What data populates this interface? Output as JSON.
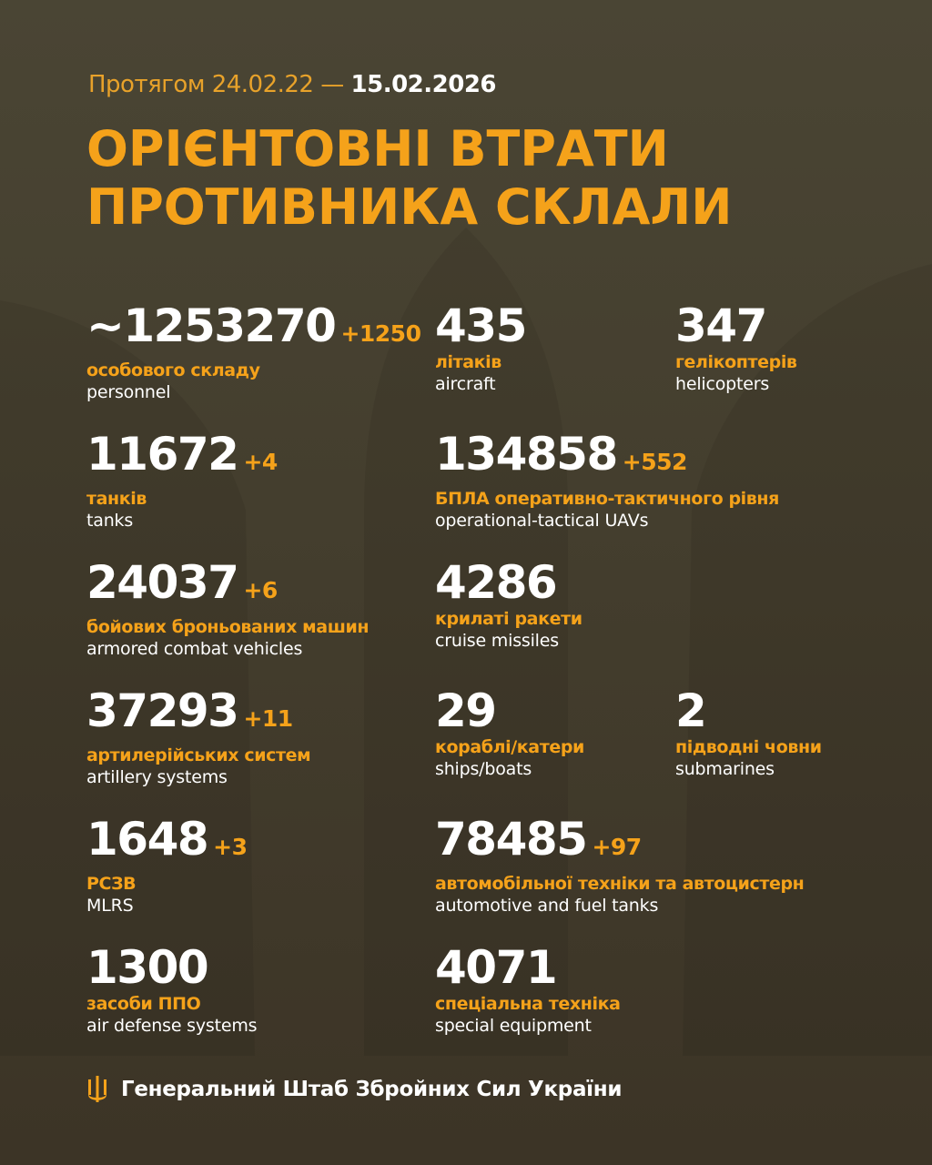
{
  "header": {
    "period_prefix": "Протягом 24.02.22 —",
    "period_end": "15.02.2026",
    "title_line1": "ОРІЄНТОВНІ ВТРАТИ",
    "title_line2": "ПРОТИВНИКА СКЛАЛИ"
  },
  "colors": {
    "accent": "#f5a21a",
    "background": "#463f2f",
    "text": "#ffffff"
  },
  "stats": [
    {
      "value": "~1253270",
      "delta": "+1250",
      "ua": "особового складу",
      "en": "personnel"
    },
    {
      "value": "435",
      "delta": "",
      "ua": "літаків",
      "en": "aircraft"
    },
    {
      "value": "347",
      "delta": "",
      "ua": "гелікоптерів",
      "en": "helicopters"
    },
    {
      "value": "11672",
      "delta": "+4",
      "ua": "танків",
      "en": "tanks"
    },
    {
      "value": "134858",
      "delta": "+552",
      "ua": "БПЛА оперативно-тактичного рівня",
      "en": "operational-tactical UAVs"
    },
    {
      "value": "24037",
      "delta": "+6",
      "ua": "бойових броньованих машин",
      "en": "armored combat vehicles"
    },
    {
      "value": "4286",
      "delta": "",
      "ua": "крилаті ракети",
      "en": "cruise missiles"
    },
    {
      "value": "37293",
      "delta": "+11",
      "ua": "артилерійських систем",
      "en": "artillery systems"
    },
    {
      "value": "29",
      "delta": "",
      "ua": "кораблі/катери",
      "en": "ships/boats"
    },
    {
      "value": "2",
      "delta": "",
      "ua": "підводні човни",
      "en": "submarines"
    },
    {
      "value": "1648",
      "delta": "+3",
      "ua": "РСЗВ",
      "en": "MLRS"
    },
    {
      "value": "78485",
      "delta": "+97",
      "ua": "автомобільної техніки та автоцистерн",
      "en": "automotive and fuel tanks"
    },
    {
      "value": "1300",
      "delta": "",
      "ua": "засоби ППО",
      "en": "air defense systems"
    },
    {
      "value": "4071",
      "delta": "",
      "ua": "спеціальна техніка",
      "en": "special equipment"
    }
  ],
  "footer": {
    "icon": "trident-icon",
    "text": "Генеральний Штаб Збройних Сил України"
  }
}
